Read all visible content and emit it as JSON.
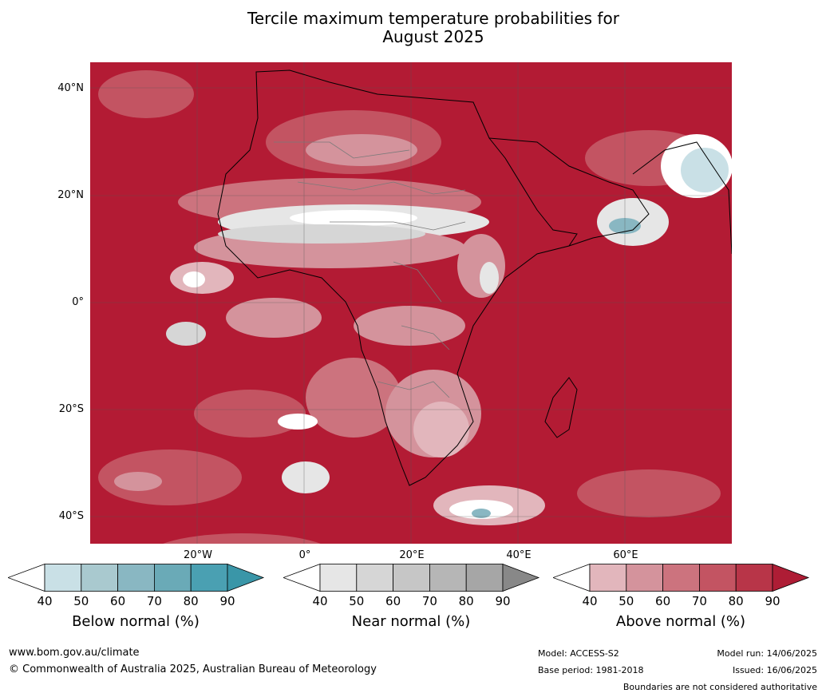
{
  "title": [
    "Tercile maximum temperature probabilities for",
    "August 2025"
  ],
  "map": {
    "lat_labels": [
      "40°N",
      "20°N",
      "0°",
      "20°S",
      "40°S"
    ],
    "lon_labels": [
      "20°W",
      "0°",
      "20°E",
      "40°E",
      "60°E"
    ],
    "background_color": "#b31b34"
  },
  "legend": {
    "below": {
      "title": "Below normal (%)",
      "ticks": [
        "40",
        "50",
        "60",
        "70",
        "80",
        "90"
      ],
      "colors": [
        "#ffffff",
        "#c9e0e6",
        "#a9c9cf",
        "#89b7c2",
        "#6aaab7",
        "#4aa0b2",
        "#3a96a8"
      ]
    },
    "near": {
      "title": "Near normal (%)",
      "ticks": [
        "40",
        "50",
        "60",
        "70",
        "80",
        "90"
      ],
      "colors": [
        "#ffffff",
        "#e6e6e6",
        "#d6d6d6",
        "#c6c6c6",
        "#b6b6b6",
        "#a6a6a6",
        "#888888"
      ]
    },
    "above": {
      "title": "Above normal (%)",
      "ticks": [
        "40",
        "50",
        "60",
        "70",
        "80",
        "90"
      ],
      "colors": [
        "#ffffff",
        "#e2b6bc",
        "#d4939c",
        "#cc737e",
        "#c35462",
        "#b83548",
        "#ae1d35"
      ]
    }
  },
  "footer": {
    "url": "www.bom.gov.au/climate",
    "copyright": "© Commonwealth of Australia 2025, Australian Bureau of Meteorology",
    "model": "Model: ACCESS-S2",
    "base_period": "Base period: 1981-2018",
    "model_run": "Model run: 14/06/2025",
    "issued": "Issued: 16/06/2025",
    "disclaimer": "Boundaries are not considered authoritative"
  }
}
